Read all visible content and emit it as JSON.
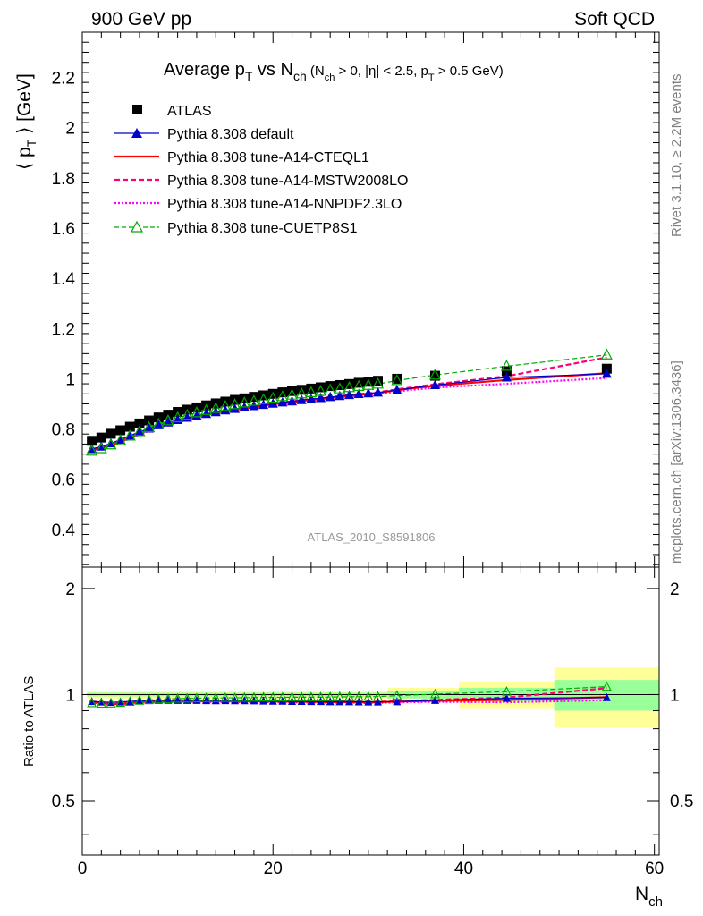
{
  "header": {
    "left": "900 GeV pp",
    "right": "Soft QCD"
  },
  "side": {
    "rivet": "Rivet 3.1.10, ≥ 2.2M events",
    "mcplots": "mcplots.cern.ch [arXiv:1306.3436]"
  },
  "watermark": "ATLAS_2010_S8591806",
  "colors": {
    "atlas": "#000000",
    "default": "#0000cc",
    "cteql1": "#ff0000",
    "mstw": "#ff0077",
    "nnpdf": "#ff00ff",
    "cuetp": "#00aa00",
    "band_outer": "#ffff99",
    "band_inner": "#99ff99"
  },
  "chart_data": [
    {
      "type": "line",
      "title_parts": {
        "main": "Average p",
        "main_sub": "T",
        "vs": " vs N",
        "vs_sub": "ch",
        "cuts_open": " (N",
        "cuts_sub1": "ch",
        "cuts_mid": " > 0, |η| < 2.5, p",
        "cuts_sub2": "T",
        "cuts_close": " > 0.5 GeV)"
      },
      "ylabel_parts": {
        "pre": "⟨ p",
        "sub": "T",
        "post": " ⟩ [GeV]"
      },
      "xlabel_parts": {
        "main": "N",
        "sub": "ch"
      },
      "xlim": [
        0,
        60.5
      ],
      "ylim": [
        0.25,
        2.38
      ],
      "x_ticks": [
        0,
        20,
        40,
        60
      ],
      "y_ticks": [
        0.4,
        0.6,
        0.8,
        1,
        1.2,
        1.4,
        1.6,
        1.8,
        2,
        2.2
      ],
      "y_tick_labels": [
        "0.4",
        "0.6",
        "0.8",
        "1",
        "1.2",
        "1.4",
        "1.6",
        "1.8",
        "2",
        "2.2"
      ],
      "legend_position": "top-left",
      "grid": false,
      "series": [
        {
          "name": "ATLAS",
          "key": "atlas",
          "marker": "square",
          "line": "none",
          "x": [
            1,
            2,
            3,
            4,
            5,
            6,
            7,
            8,
            9,
            10,
            11,
            12,
            13,
            14,
            15,
            16,
            17,
            18,
            19,
            20,
            21,
            22,
            23,
            24,
            25,
            26,
            27,
            28,
            29,
            30,
            31,
            33,
            37,
            44.5,
            55
          ],
          "y": [
            0.753,
            0.766,
            0.781,
            0.795,
            0.809,
            0.822,
            0.834,
            0.846,
            0.857,
            0.868,
            0.877,
            0.886,
            0.894,
            0.902,
            0.909,
            0.916,
            0.922,
            0.928,
            0.934,
            0.94,
            0.946,
            0.951,
            0.956,
            0.961,
            0.966,
            0.971,
            0.975,
            0.979,
            0.984,
            0.988,
            0.992,
            1.0,
            1.012,
            1.03,
            1.04
          ]
        },
        {
          "name": "Pythia 8.308 default",
          "key": "default",
          "marker": "triangle",
          "line": "solid",
          "x": [
            1,
            2,
            3,
            4,
            5,
            6,
            7,
            8,
            9,
            10,
            11,
            12,
            13,
            14,
            15,
            16,
            17,
            18,
            19,
            20,
            21,
            22,
            23,
            24,
            25,
            26,
            27,
            28,
            29,
            30,
            31,
            33,
            37,
            44.5,
            55
          ],
          "y": [
            0.72,
            0.73,
            0.743,
            0.758,
            0.774,
            0.789,
            0.802,
            0.815,
            0.826,
            0.836,
            0.845,
            0.853,
            0.86,
            0.867,
            0.874,
            0.88,
            0.886,
            0.891,
            0.896,
            0.901,
            0.906,
            0.91,
            0.915,
            0.919,
            0.923,
            0.927,
            0.931,
            0.935,
            0.939,
            0.942,
            0.945,
            0.955,
            0.975,
            1.005,
            1.02
          ]
        },
        {
          "name": "Pythia 8.308 tune-A14-CTEQL1",
          "key": "cteql1",
          "marker": "none",
          "line": "solid",
          "x": [
            1,
            2,
            3,
            4,
            5,
            6,
            7,
            8,
            9,
            10,
            11,
            12,
            13,
            14,
            15,
            16,
            17,
            18,
            19,
            20,
            21,
            22,
            23,
            24,
            25,
            26,
            27,
            28,
            29,
            30,
            31,
            33,
            37,
            44.5,
            55
          ],
          "y": [
            0.718,
            0.725,
            0.735,
            0.748,
            0.765,
            0.782,
            0.797,
            0.81,
            0.821,
            0.831,
            0.84,
            0.848,
            0.856,
            0.863,
            0.87,
            0.876,
            0.882,
            0.887,
            0.893,
            0.898,
            0.903,
            0.907,
            0.912,
            0.916,
            0.92,
            0.924,
            0.928,
            0.932,
            0.936,
            0.939,
            0.943,
            0.955,
            0.972,
            0.995,
            1.022
          ]
        },
        {
          "name": "Pythia 8.308 tune-A14-MSTW2008LO",
          "key": "mstw",
          "marker": "none",
          "line": "dashed",
          "x": [
            1,
            2,
            3,
            4,
            5,
            6,
            7,
            8,
            9,
            10,
            11,
            12,
            13,
            14,
            15,
            16,
            17,
            18,
            19,
            20,
            21,
            22,
            23,
            24,
            25,
            26,
            27,
            28,
            29,
            30,
            31,
            33,
            37,
            44.5,
            55
          ],
          "y": [
            0.72,
            0.728,
            0.738,
            0.752,
            0.769,
            0.785,
            0.8,
            0.813,
            0.824,
            0.834,
            0.843,
            0.851,
            0.859,
            0.866,
            0.873,
            0.879,
            0.885,
            0.89,
            0.896,
            0.901,
            0.906,
            0.91,
            0.915,
            0.919,
            0.923,
            0.927,
            0.931,
            0.935,
            0.939,
            0.942,
            0.946,
            0.958,
            0.978,
            1.01,
            1.085
          ]
        },
        {
          "name": "Pythia 8.308 tune-A14-NNPDF2.3LO",
          "key": "nnpdf",
          "marker": "none",
          "line": "dotted",
          "x": [
            1,
            2,
            3,
            4,
            5,
            6,
            7,
            8,
            9,
            10,
            11,
            12,
            13,
            14,
            15,
            16,
            17,
            18,
            19,
            20,
            21,
            22,
            23,
            24,
            25,
            26,
            27,
            28,
            29,
            30,
            31,
            33,
            37,
            44.5,
            55
          ],
          "y": [
            0.715,
            0.722,
            0.732,
            0.745,
            0.762,
            0.778,
            0.793,
            0.806,
            0.817,
            0.827,
            0.836,
            0.844,
            0.852,
            0.859,
            0.866,
            0.872,
            0.878,
            0.883,
            0.889,
            0.894,
            0.899,
            0.903,
            0.908,
            0.912,
            0.916,
            0.92,
            0.924,
            0.928,
            0.932,
            0.935,
            0.939,
            0.95,
            0.965,
            0.98,
            1.003
          ]
        },
        {
          "name": "Pythia 8.308 tune-CUETP8S1",
          "key": "cuetp",
          "marker": "open-triangle",
          "line": "dashed",
          "x": [
            1,
            2,
            3,
            4,
            5,
            6,
            7,
            8,
            9,
            10,
            11,
            12,
            13,
            14,
            15,
            16,
            17,
            18,
            19,
            20,
            21,
            22,
            23,
            24,
            25,
            26,
            27,
            28,
            29,
            30,
            31,
            33,
            37,
            44.5,
            55
          ],
          "y": [
            0.712,
            0.722,
            0.737,
            0.754,
            0.772,
            0.79,
            0.806,
            0.82,
            0.833,
            0.845,
            0.855,
            0.865,
            0.874,
            0.882,
            0.89,
            0.897,
            0.904,
            0.911,
            0.917,
            0.923,
            0.929,
            0.935,
            0.94,
            0.945,
            0.95,
            0.955,
            0.96,
            0.965,
            0.97,
            0.974,
            0.979,
            0.993,
            1.015,
            1.05,
            1.095
          ]
        }
      ]
    },
    {
      "type": "line",
      "ylabel": "Ratio to ATLAS",
      "xlim": [
        0,
        60.5
      ],
      "ylim": [
        0.35,
        2.3
      ],
      "log_y": true,
      "x_ticks": [
        0,
        20,
        40,
        60
      ],
      "x_tick_labels": [
        "0",
        "20",
        "40",
        "60"
      ],
      "y_ticks": [
        0.5,
        1,
        2
      ],
      "y_tick_labels": [
        "0.5",
        "1",
        "2"
      ],
      "reference_line": 1,
      "bands": [
        {
          "x0": 0.5,
          "x1": 32,
          "outer": [
            0.975,
            1.025
          ],
          "inner": [
            0.988,
            1.012
          ]
        },
        {
          "x0": 32,
          "x1": 39.5,
          "outer": [
            0.955,
            1.045
          ],
          "inner": [
            0.975,
            1.025
          ]
        },
        {
          "x0": 39.5,
          "x1": 49.5,
          "outer": [
            0.91,
            1.09
          ],
          "inner": [
            0.955,
            1.045
          ]
        },
        {
          "x0": 49.5,
          "x1": 60.5,
          "outer": [
            0.805,
            1.195
          ],
          "inner": [
            0.9,
            1.1
          ]
        }
      ],
      "series_ratios": {
        "default": [
          0.956,
          0.953,
          0.951,
          0.953,
          0.957,
          0.96,
          0.962,
          0.963,
          0.964,
          0.963,
          0.963,
          0.963,
          0.962,
          0.961,
          0.962,
          0.961,
          0.961,
          0.96,
          0.959,
          0.958,
          0.958,
          0.957,
          0.957,
          0.956,
          0.956,
          0.955,
          0.955,
          0.955,
          0.954,
          0.953,
          0.953,
          0.955,
          0.963,
          0.976,
          0.981
        ],
        "cteql1": [
          0.953,
          0.946,
          0.941,
          0.941,
          0.946,
          0.951,
          0.956,
          0.957,
          0.958,
          0.957,
          0.958,
          0.957,
          0.957,
          0.957,
          0.957,
          0.956,
          0.957,
          0.956,
          0.956,
          0.955,
          0.955,
          0.954,
          0.954,
          0.953,
          0.952,
          0.952,
          0.952,
          0.952,
          0.951,
          0.95,
          0.951,
          0.955,
          0.96,
          0.966,
          0.983
        ],
        "mstw": [
          0.956,
          0.95,
          0.945,
          0.946,
          0.951,
          0.955,
          0.959,
          0.961,
          0.961,
          0.961,
          0.961,
          0.96,
          0.961,
          0.96,
          0.96,
          0.96,
          0.96,
          0.959,
          0.959,
          0.959,
          0.958,
          0.957,
          0.957,
          0.956,
          0.956,
          0.955,
          0.955,
          0.955,
          0.954,
          0.953,
          0.954,
          0.958,
          0.966,
          0.981,
          1.043
        ],
        "nnpdf": [
          0.95,
          0.943,
          0.937,
          0.937,
          0.942,
          0.946,
          0.951,
          0.953,
          0.953,
          0.953,
          0.953,
          0.953,
          0.953,
          0.952,
          0.953,
          0.952,
          0.952,
          0.951,
          0.952,
          0.951,
          0.95,
          0.95,
          0.95,
          0.949,
          0.948,
          0.948,
          0.948,
          0.948,
          0.947,
          0.946,
          0.947,
          0.95,
          0.954,
          0.951,
          0.964
        ],
        "cuetp": [
          0.946,
          0.943,
          0.944,
          0.948,
          0.954,
          0.961,
          0.966,
          0.969,
          0.972,
          0.974,
          0.975,
          0.976,
          0.978,
          0.978,
          0.979,
          0.979,
          0.98,
          0.981,
          0.982,
          0.982,
          0.982,
          0.983,
          0.983,
          0.983,
          0.983,
          0.984,
          0.985,
          0.986,
          0.986,
          0.986,
          0.987,
          0.993,
          1.003,
          1.019,
          1.053
        ]
      }
    }
  ]
}
